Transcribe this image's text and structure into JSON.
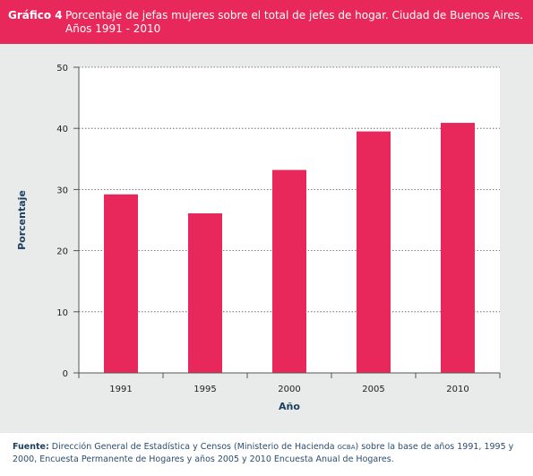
{
  "header": {
    "label": "Gráfico 4",
    "title_line1": "Porcentaje de jefas mujeres sobre el total de jefes de hogar. Ciudad de Buenos Aires.",
    "title_line2": "Años 1991 - 2010"
  },
  "chart_data": {
    "type": "bar",
    "categories": [
      "1991",
      "1995",
      "2000",
      "2005",
      "2010"
    ],
    "values": [
      29.2,
      26.1,
      33.2,
      39.5,
      40.9
    ],
    "title": "Porcentaje de jefas mujeres sobre el total de jefes de hogar. Ciudad de Buenos Aires. Años 1991 - 2010",
    "xlabel": "Año",
    "ylabel": "Porcentaje",
    "ylim": [
      0,
      50
    ],
    "yticks": [
      0,
      10,
      20,
      30,
      40,
      50
    ],
    "grid": "horizontal dotted",
    "bar_color": "#e8285a",
    "plot_background": "#ffffff",
    "panel_background": "#e9ebeb"
  },
  "footer": {
    "source_label": "Fuente:",
    "source_text_a": " Dirección General de Estadística y Censos (Ministerio de Hacienda ",
    "source_abbr": "GCBA",
    "source_text_b": ") sobre la base de años 1991, 1995 y 2000, Encuesta Permanente de Hogares y años 2005 y 2010 Encuesta Anual de Hogares."
  }
}
